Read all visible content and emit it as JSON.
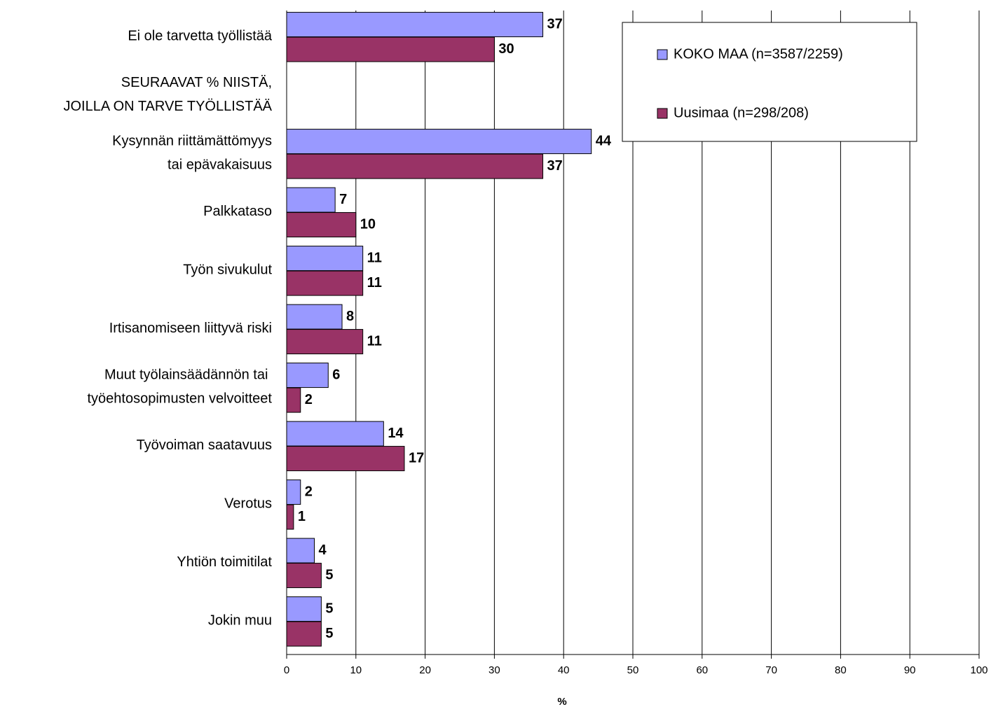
{
  "chart_data": {
    "type": "hbar",
    "categories": [
      "Ei ole tarvetta työllistää",
      "SEURAAVAT % NIISTÄ,\nJOILLA ON TARVE TYÖLLISTÄÄ",
      "Kysynnän riittämättömyys\ntai epävakaisuus",
      "Palkkataso",
      "Työn sivukulut",
      "Irtisanomiseen liittyvä riski",
      "Muut työlainsäädännön tai \ntyöehtosopimusten velvoitteet",
      "Työvoiman saatavuus",
      "Verotus",
      "Yhtiön toimitilat",
      "Jokin muu"
    ],
    "series": [
      {
        "name": "KOKO MAA (n=3587/2259)",
        "color": "#9999ff",
        "values": [
          37,
          null,
          44,
          7,
          11,
          8,
          6,
          14,
          2,
          4,
          5
        ]
      },
      {
        "name": "Uusimaa (n=298/208)",
        "color": "#993366",
        "values": [
          30,
          null,
          37,
          10,
          11,
          11,
          2,
          17,
          1,
          5,
          5
        ]
      }
    ],
    "xlim": [
      0,
      100
    ],
    "xticks": [
      0,
      10,
      20,
      30,
      40,
      50,
      60,
      70,
      80,
      90,
      100
    ],
    "xlabel": "%",
    "grid": true,
    "legend": "top-right"
  }
}
